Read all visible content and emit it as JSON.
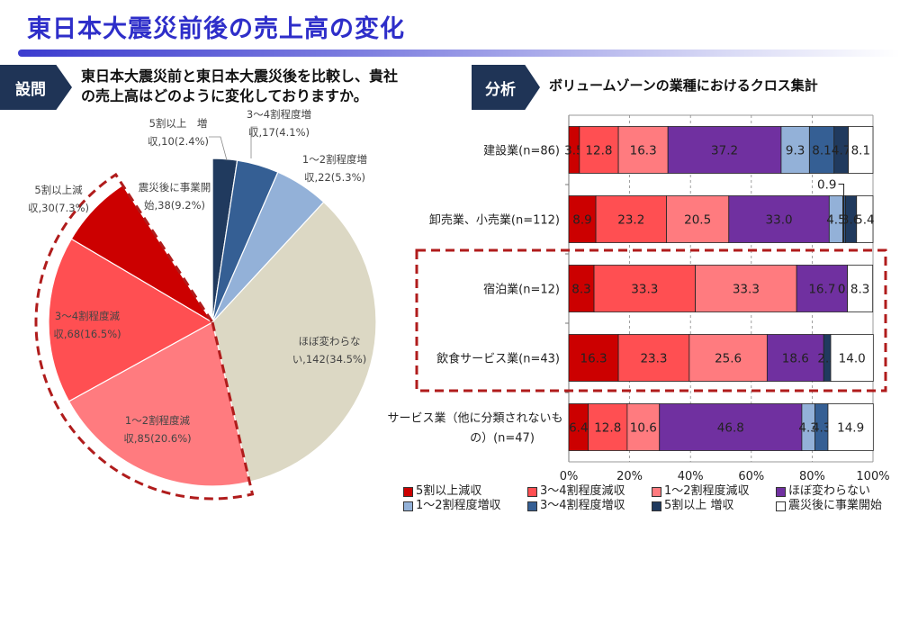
{
  "page": {
    "title": "東日本大震災前後の売上高の変化",
    "question_tag": "設問",
    "question_line1": "東日本大震災前と東日本大震災後を比較し、貴社",
    "question_line2": "の売上高はどのように変化しておりますか。",
    "analysis_tag": "分析",
    "analysis_title": "ボリュームゾーンの業種におけるクロス集計"
  },
  "colors": {
    "title": "#2e2ec9",
    "tag_bg": "#1f3456",
    "highlight_dash": "#b01c1c"
  },
  "chart_data": [
    {
      "type": "pie",
      "title": "",
      "start": "12 o'clock, clockwise",
      "slices": [
        {
          "label": "5割以上 増収",
          "label_line1": "5割以上　増",
          "label_line2": "収,10(2.4%)",
          "count": 10,
          "percent": 2.4,
          "color": "#203a5e"
        },
        {
          "label": "3〜4割程度増収",
          "label_line1": "3〜4割程度増",
          "label_line2": "収,17(4.1%)",
          "count": 17,
          "percent": 4.1,
          "color": "#355f94"
        },
        {
          "label": "1〜2割程度増収",
          "label_line1": "1〜2割程度増",
          "label_line2": "収,22(5.3%)",
          "count": 22,
          "percent": 5.3,
          "color": "#93b1d8"
        },
        {
          "label": "ほぼ変わらない",
          "label_line1": "ほぼ変わらな",
          "label_line2": "い,142(34.5%)",
          "count": 142,
          "percent": 34.5,
          "color": "#dcd8c4"
        },
        {
          "label": "1〜2割程度減収",
          "label_line1": "1〜2割程度減",
          "label_line2": "収,85(20.6%)",
          "count": 85,
          "percent": 20.6,
          "color": "#ff7b7f"
        },
        {
          "label": "3〜4割程度減収",
          "label_line1": "3〜4割程度減",
          "label_line2": "収,68(16.5%)",
          "count": 68,
          "percent": 16.5,
          "color": "#ff4f52"
        },
        {
          "label": "5割以上減収",
          "label_line1": "5割以上減",
          "label_line2": "収,30(7.3%)",
          "count": 30,
          "percent": 7.3,
          "color": "#cc0000"
        },
        {
          "label": "震災後に事業開始",
          "label_line1": "震災後に事業開",
          "label_line2": "始,38(9.2%)",
          "count": 38,
          "percent": 9.2,
          "color": "#ffffff"
        }
      ],
      "highlight": "dashed outline around decrease slices (1〜2割程度減収, 3〜4割程度減収, 5割以上減収)"
    },
    {
      "type": "bar",
      "orientation": "horizontal",
      "stacked": "100%",
      "title": "ボリュームゾーンの業種におけるクロス集計",
      "xlabel": "",
      "ylabel": "",
      "xlim": [
        0,
        100
      ],
      "x_ticks": [
        "0%",
        "20%",
        "40%",
        "60%",
        "80%",
        "100%"
      ],
      "grid": "vertical dashed",
      "legend_position": "bottom",
      "categories": [
        "建設業(n=86)",
        "卸売業、小売業(n=112)",
        "宿泊業(n=12)",
        "飲食サービス業(n=43)",
        "サービス業（他に分類されないもの）(n=47)"
      ],
      "category_lines": [
        [
          "建設業(n=86)"
        ],
        [
          "卸売業、小売業(n=112)"
        ],
        [
          "宿泊業(n=12)"
        ],
        [
          "飲食サービス業(n=43)"
        ],
        [
          "サービス業（他に分類されないも",
          "の）(n=47)"
        ]
      ],
      "series": [
        {
          "name": "5割以上減収",
          "color": "#cc0000",
          "values": [
            3.5,
            8.9,
            8.3,
            16.3,
            6.4
          ]
        },
        {
          "name": "3〜4割程度減収",
          "color": "#ff4f52",
          "values": [
            12.8,
            23.2,
            33.3,
            23.3,
            12.8
          ]
        },
        {
          "name": "1〜2割程度減収",
          "color": "#ff7b7f",
          "values": [
            16.3,
            20.5,
            33.3,
            25.6,
            10.6
          ]
        },
        {
          "name": "ほぼ変わらない",
          "color": "#7030a0",
          "values": [
            37.2,
            33.0,
            16.7,
            18.6,
            46.8
          ]
        },
        {
          "name": "1〜2割程度増収",
          "color": "#93b1d8",
          "values": [
            9.3,
            4.5,
            0.0,
            0.0,
            4.3
          ]
        },
        {
          "name": "3〜4割程度増収",
          "color": "#355f94",
          "values": [
            8.1,
            0.9,
            0.0,
            0.0,
            4.3
          ]
        },
        {
          "name": "5割以上 増収",
          "color": "#203a5e",
          "values": [
            4.7,
            3.6,
            0.0,
            2.3,
            0.0
          ]
        },
        {
          "name": "震災後に事業開始",
          "color": "#ffffff",
          "values": [
            8.1,
            5.4,
            8.3,
            14.0,
            14.9
          ]
        }
      ],
      "data_labels": [
        [
          "3.5",
          "12.8",
          "16.3",
          "37.2",
          "9.3",
          "8.1",
          "4.7",
          "8.1"
        ],
        [
          "8.9",
          "23.2",
          "20.5",
          "33.0",
          "4.5",
          "",
          "3.6",
          "5.4"
        ],
        [
          "8.3",
          "33.3",
          "33.3",
          "16.7",
          "0.0",
          "0.0",
          "",
          "8.3"
        ],
        [
          "16.3",
          "23.3",
          "25.6",
          "18.6",
          "",
          "",
          "2.3",
          "14.0"
        ],
        [
          "6.4",
          "12.8",
          "10.6",
          "46.8",
          "4.3",
          "4.3",
          "",
          "14.9"
        ]
      ],
      "callout_label": "0.9",
      "highlight": "dashed box around 宿泊業 and 飲食サービス業"
    }
  ],
  "legend": {
    "row1": [
      0,
      1,
      2,
      3
    ],
    "row2": [
      4,
      5,
      6,
      7
    ]
  }
}
